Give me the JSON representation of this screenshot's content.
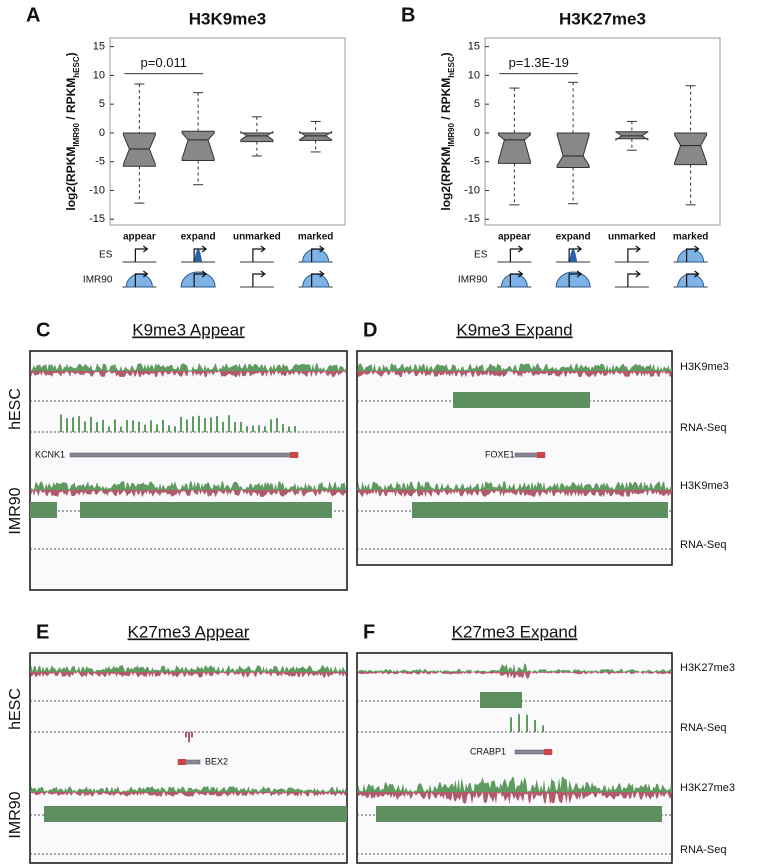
{
  "chart_data": [
    {
      "type": "box",
      "panel": "A",
      "title": "H3K9me3",
      "ylabel": [
        "log2(RPKM",
        "IMR90",
        " / RPKM",
        "hESC",
        ")"
      ],
      "categories": [
        "appear",
        "expand",
        "unmarked",
        "marked"
      ],
      "boxes": [
        {
          "low": -12.2,
          "q1": -5.8,
          "median": -2.8,
          "q3": 0,
          "high": 8.5
        },
        {
          "low": -9,
          "q1": -4.8,
          "median": -1.2,
          "q3": 0.3,
          "high": 7
        },
        {
          "low": -4,
          "q1": -1.5,
          "median": -0.5,
          "q3": 0,
          "high": 2.8
        },
        {
          "low": -3.3,
          "q1": -1.3,
          "median": -0.5,
          "q3": 0,
          "high": 2
        }
      ],
      "ylim": [
        -16,
        16.5
      ],
      "yticks": [
        -15,
        -10,
        -5,
        0,
        5,
        10,
        15
      ],
      "annotation": {
        "text": "p=0.011",
        "y": 10.3
      },
      "icon_rows": [
        "ES",
        "IMR90"
      ]
    },
    {
      "type": "box",
      "panel": "B",
      "title": "H3K27me3",
      "ylabel": [
        "log2(RPKM",
        "IMR90",
        " / RPKM",
        "hESC",
        ")"
      ],
      "categories": [
        "appear",
        "expand",
        "unmarked",
        "marked"
      ],
      "boxes": [
        {
          "low": -12.5,
          "q1": -5.3,
          "median": -1.2,
          "q3": 0,
          "high": 7.8
        },
        {
          "low": -12.3,
          "q1": -6,
          "median": -4,
          "q3": 0,
          "high": 8.8
        },
        {
          "low": -3,
          "q1": -1,
          "median": -0.5,
          "q3": 0.2,
          "high": 2
        },
        {
          "low": -12.5,
          "q1": -5.5,
          "median": -2.2,
          "q3": 0,
          "high": 8.2
        }
      ],
      "ylim": [
        -16,
        16.5
      ],
      "yticks": [
        -15,
        -10,
        -5,
        0,
        5,
        10,
        15
      ],
      "annotation": {
        "text": "p=1.3E-19",
        "y": 10.3
      },
      "icon_rows": [
        "ES",
        "IMR90"
      ]
    }
  ],
  "panels": [
    {
      "letter": "C",
      "title": "K9me3 Appear",
      "rows": [
        "hESC",
        "IMR90"
      ],
      "gene": "KCNK1"
    },
    {
      "letter": "D",
      "title": "K9me3 Expand",
      "tracks": [
        "H3K9me3",
        "RNA-Seq",
        "H3K9me3",
        "RNA-Seq"
      ],
      "gene": "FOXE1"
    },
    {
      "letter": "E",
      "title": "K27me3 Appear",
      "rows": [
        "hESC",
        "IMR90"
      ],
      "gene": "BEX2"
    },
    {
      "letter": "F",
      "title": "K27me3 Expand",
      "tracks": [
        "H3K27me3",
        "RNA-Seq",
        "H3K27me3",
        "RNA-Seq"
      ],
      "gene": "CRABP1"
    }
  ]
}
